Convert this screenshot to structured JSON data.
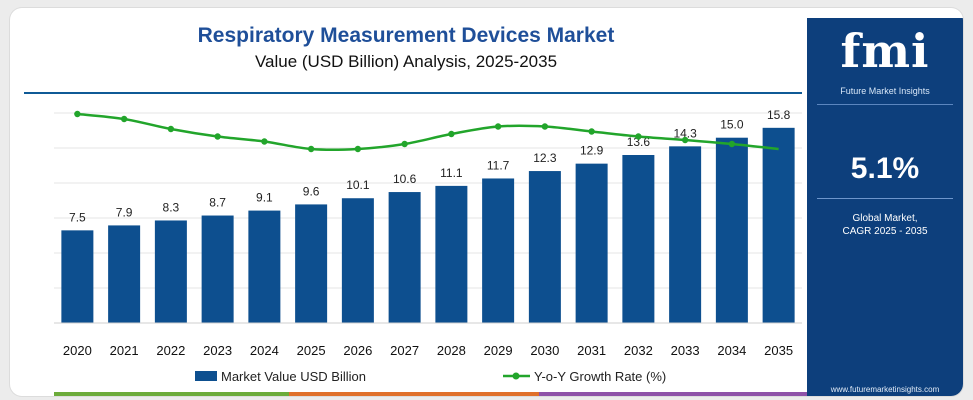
{
  "header": {
    "title": "Respiratory Measurement Devices Market",
    "subtitle": "Value (USD Billion) Analysis, 2025-2035"
  },
  "panel": {
    "logo": "fmi",
    "logo_sub": "Future Market Insights",
    "cagr_value": "5.1%",
    "cagr_label_1": "Global Market,",
    "cagr_label_2": "CAGR 2025 - 2035",
    "url": "www.futuremarketinsights.com"
  },
  "colors": {
    "title": "#1f4f99",
    "bar": "#0d4f8f",
    "line": "#22a52b",
    "panel": "#0d3f7c",
    "strip": [
      "#6cab3a",
      "#e0702a",
      "#8e52a8"
    ]
  },
  "chart_data": {
    "type": "bar",
    "categories": [
      "2020",
      "2021",
      "2022",
      "2023",
      "2024",
      "2025",
      "2026",
      "2027",
      "2028",
      "2029",
      "2030",
      "2031",
      "2032",
      "2033",
      "2034",
      "2035"
    ],
    "series": [
      {
        "name": "Market Value USD Billion",
        "type": "bar",
        "values": [
          7.5,
          7.9,
          8.3,
          8.7,
          9.1,
          9.6,
          10.1,
          10.6,
          11.1,
          11.7,
          12.3,
          12.9,
          13.6,
          14.3,
          15.0,
          15.8
        ],
        "labels": [
          "7.5",
          "7.9",
          "8.3",
          "8.7",
          "9.1",
          "9.6",
          "10.1",
          "10.6",
          "11.1",
          "11.7",
          "12.3",
          "12.9",
          "13.6",
          "14.3",
          "15.0",
          "15.8"
        ]
      },
      {
        "name": "Y-o-Y Growth Rate (%)",
        "type": "line",
        "values": [
          5.3,
          5.2,
          5.0,
          4.85,
          4.75,
          4.6,
          4.6,
          4.7,
          4.9,
          5.05,
          5.05,
          4.95,
          4.85,
          4.78,
          4.7,
          4.6
        ]
      }
    ],
    "ylim": [
      0,
      17
    ],
    "y2lim": [
      3.5,
      5.5
    ],
    "grid": true,
    "legend": "bottom",
    "title": "Respiratory Measurement Devices Market",
    "subtitle": "Value (USD Billion) Analysis, 2025-2035"
  }
}
